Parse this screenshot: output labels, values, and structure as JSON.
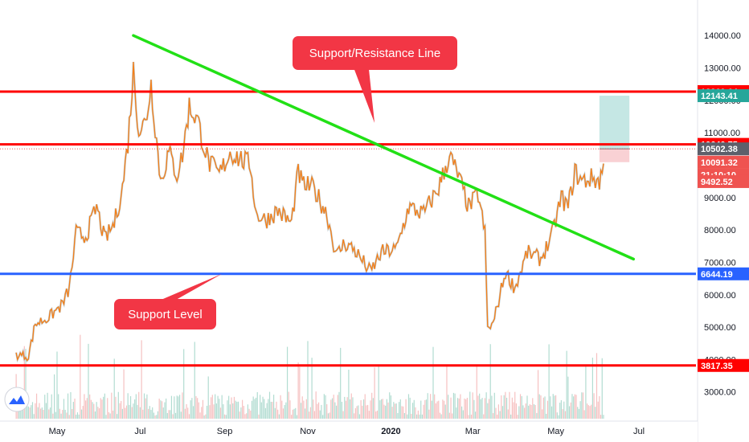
{
  "chart_data": {
    "type": "line",
    "y_axis": {
      "range": [
        2100,
        14600
      ],
      "ticks": [
        3000,
        4000,
        5000,
        6000,
        7000,
        8000,
        9000,
        10000,
        11000,
        12000,
        13000,
        14000
      ],
      "tick_labels": [
        "3000.00",
        "4000.00",
        "5000.00",
        "6000.00",
        "7000.00",
        "8000.00",
        "9000.00",
        "10000.00",
        "11000.00",
        "12000.00",
        "13000.00",
        "14000.00"
      ]
    },
    "x_axis": {
      "labels": [
        "May",
        "Jul",
        "Sep",
        "Nov",
        "2020",
        "Mar",
        "May",
        "Jul"
      ],
      "label_dates": [
        "2019-05-01",
        "2019-07-01",
        "2019-09-01",
        "2019-11-01",
        "2020-01-01",
        "2020-03-01",
        "2020-05-01",
        "2020-07-01"
      ]
    },
    "price_series": {
      "color": "#f57f17",
      "points": [
        [
          "2019-04-01",
          4150
        ],
        [
          "2019-04-10",
          4100
        ],
        [
          "2019-04-15",
          5100
        ],
        [
          "2019-04-25",
          5300
        ],
        [
          "2019-05-05",
          5700
        ],
        [
          "2019-05-10",
          6200
        ],
        [
          "2019-05-15",
          7900
        ],
        [
          "2019-05-22",
          7800
        ],
        [
          "2019-05-30",
          8700
        ],
        [
          "2019-06-05",
          7700
        ],
        [
          "2019-06-12",
          8200
        ],
        [
          "2019-06-18",
          9300
        ],
        [
          "2019-06-22",
          10700
        ],
        [
          "2019-06-26",
          12900
        ],
        [
          "2019-06-30",
          11100
        ],
        [
          "2019-07-05",
          11300
        ],
        [
          "2019-07-09",
          12500
        ],
        [
          "2019-07-16",
          9500
        ],
        [
          "2019-07-22",
          10400
        ],
        [
          "2019-07-28",
          9700
        ],
        [
          "2019-08-01",
          10300
        ],
        [
          "2019-08-06",
          11800
        ],
        [
          "2019-08-12",
          11400
        ],
        [
          "2019-08-20",
          10100
        ],
        [
          "2019-08-28",
          9700
        ],
        [
          "2019-09-05",
          10400
        ],
        [
          "2019-09-12",
          10200
        ],
        [
          "2019-09-20",
          10000
        ],
        [
          "2019-09-24",
          8500
        ],
        [
          "2019-10-01",
          8300
        ],
        [
          "2019-10-10",
          8600
        ],
        [
          "2019-10-20",
          8200
        ],
        [
          "2019-10-25",
          9800
        ],
        [
          "2019-10-28",
          9400
        ],
        [
          "2019-11-05",
          9300
        ],
        [
          "2019-11-15",
          8500
        ],
        [
          "2019-11-22",
          7200
        ],
        [
          "2019-11-28",
          7600
        ],
        [
          "2019-12-05",
          7400
        ],
        [
          "2019-12-17",
          6700
        ],
        [
          "2019-12-25",
          7300
        ],
        [
          "2020-01-05",
          7400
        ],
        [
          "2020-01-14",
          8700
        ],
        [
          "2020-01-25",
          8500
        ],
        [
          "2020-02-05",
          9300
        ],
        [
          "2020-02-13",
          10300
        ],
        [
          "2020-02-20",
          9600
        ],
        [
          "2020-02-27",
          8700
        ],
        [
          "2020-03-05",
          9100
        ],
        [
          "2020-03-10",
          7900
        ],
        [
          "2020-03-12",
          4950
        ],
        [
          "2020-03-16",
          5100
        ],
        [
          "2020-03-25",
          6700
        ],
        [
          "2020-04-01",
          6200
        ],
        [
          "2020-04-10",
          7300
        ],
        [
          "2020-04-20",
          7100
        ],
        [
          "2020-04-28",
          7800
        ],
        [
          "2020-05-05",
          9000
        ],
        [
          "2020-05-10",
          8700
        ],
        [
          "2020-05-15",
          9800
        ],
        [
          "2020-05-20",
          9500
        ],
        [
          "2020-05-28",
          9600
        ],
        [
          "2020-06-02",
          9500
        ],
        [
          "2020-06-05",
          10050
        ]
      ]
    },
    "volume_series": {
      "color": "#e57373"
    },
    "horizontal_levels": [
      {
        "value": 12269.64,
        "label": "12269.64",
        "color": "#ff0000"
      },
      {
        "value": 10640.75,
        "label": "10640.75",
        "color": "#ff0000"
      },
      {
        "value": 6644.19,
        "label": "6644.19",
        "color": "#2962ff"
      },
      {
        "value": 3817.35,
        "label": "3817.35",
        "color": "#ff0000"
      }
    ],
    "price_tags": [
      {
        "value": 12143.41,
        "label": "12143.41",
        "color": "#26a69a"
      },
      {
        "value": 10502.38,
        "label": "10502.38",
        "color": "#5d606b"
      },
      {
        "value": 10091.32,
        "label": "10091.32",
        "color": "#ef5350"
      },
      {
        "value": 9700,
        "label": "21:10:10",
        "color": "#ef5350"
      },
      {
        "value": 9492.52,
        "label": "9492.52",
        "color": "#ef5350"
      }
    ],
    "current_price": 10502.38,
    "trendline": {
      "start": [
        "2019-06-26",
        14000
      ],
      "end": [
        "2020-06-27",
        7100
      ],
      "color": "#22e016"
    },
    "position_box": {
      "start": "2020-06-02",
      "end": "2020-06-24",
      "entry": 10502.38,
      "target": 12143.41,
      "stop": 10091.32,
      "target_color": "#b2dfdb",
      "stop_color": "#f8c9cc"
    },
    "annotations": [
      {
        "text": "Support/Resistance Line",
        "pointer_to": [
          "2019-12-20",
          11300
        ]
      },
      {
        "text": "Support Level",
        "pointer_to": [
          "2019-08-30",
          6644.19
        ]
      }
    ]
  },
  "icons": {
    "logo": "tradingview-logo-icon"
  }
}
